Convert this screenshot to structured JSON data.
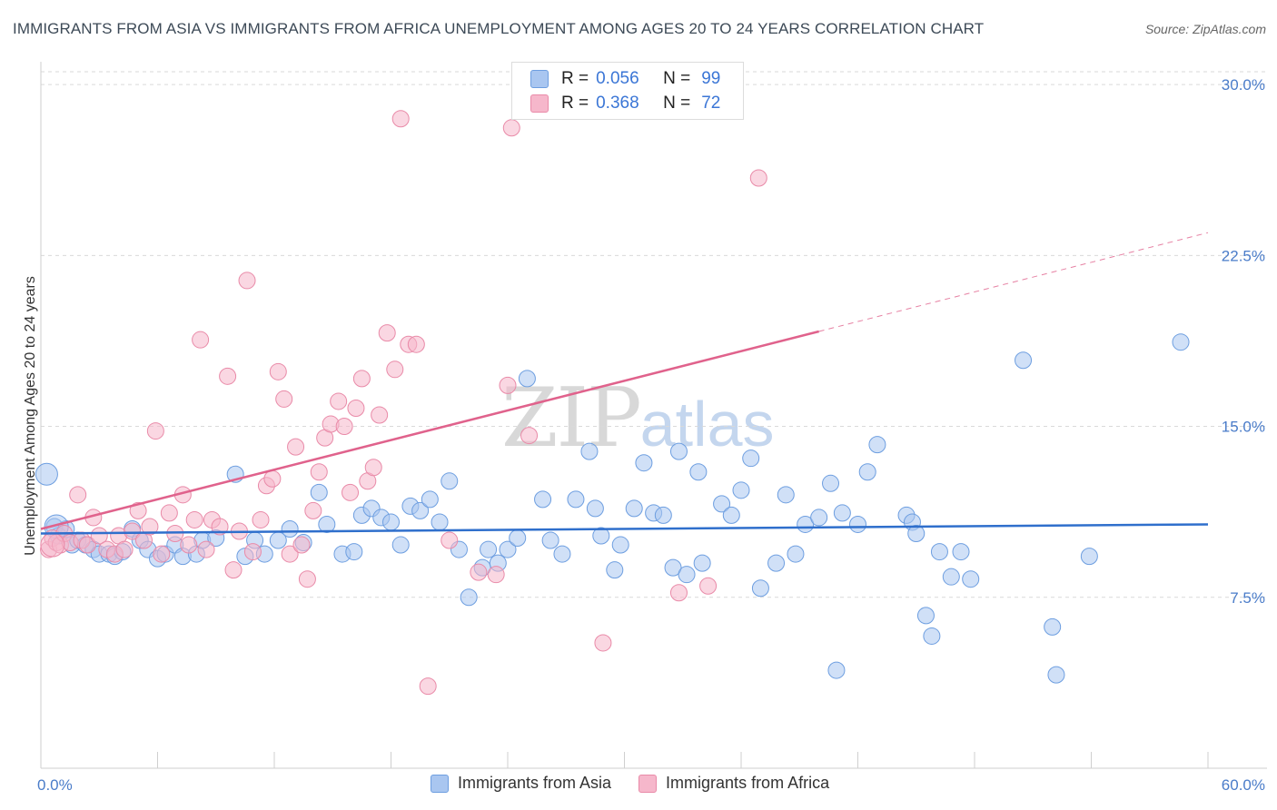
{
  "header": {
    "title": "IMMIGRANTS FROM ASIA VS IMMIGRANTS FROM AFRICA UNEMPLOYMENT AMONG AGES 20 TO 24 YEARS CORRELATION CHART",
    "source": "Source: ZipAtlas.com"
  },
  "watermark": {
    "zip": "ZIP",
    "atlas": "atlas"
  },
  "legend": {
    "asia": {
      "r_label": "R =",
      "r_value": "0.056",
      "n_label": "N =",
      "n_value": "99"
    },
    "africa": {
      "r_label": "R =",
      "r_value": "0.368",
      "n_label": "N =",
      "n_value": "72"
    }
  },
  "colors": {
    "asia_fill": "#a9c6f0",
    "asia_stroke": "#6d9ee0",
    "asia_line": "#2f6fcc",
    "africa_fill": "#f6b7cb",
    "africa_stroke": "#e98aa8",
    "africa_line": "#e0628c",
    "grid": "#d9d9d9",
    "axis_text": "#4a7cc9"
  },
  "chart_data": {
    "type": "scatter",
    "title": "IMMIGRANTS FROM ASIA VS IMMIGRANTS FROM AFRICA UNEMPLOYMENT AMONG AGES 20 TO 24 YEARS CORRELATION CHART",
    "xlabel": "",
    "ylabel": "Unemployment Among Ages 20 to 24 years",
    "xlim": [
      0,
      60
    ],
    "ylim": [
      0,
      31
    ],
    "x_tick_labels": [
      "0.0%",
      "60.0%"
    ],
    "y_ticks": [
      7.5,
      15.0,
      22.5,
      30.0
    ],
    "y_tick_labels": [
      "7.5%",
      "15.0%",
      "22.5%",
      "30.0%"
    ],
    "grid": "horizontal dashed",
    "legend_position": "top-center",
    "series": [
      {
        "name": "Immigrants from Asia",
        "r": 0.056,
        "n": 99,
        "trend": {
          "x": [
            0,
            60
          ],
          "y": [
            10.3,
            10.7
          ],
          "dashed_from": null
        },
        "points": [
          [
            0.3,
            12.9
          ],
          [
            0.7,
            10.6
          ],
          [
            0.9,
            10.2
          ],
          [
            1.3,
            10.5
          ],
          [
            1.6,
            9.8
          ],
          [
            1.9,
            10.0
          ],
          [
            2.3,
            9.8
          ],
          [
            2.7,
            9.6
          ],
          [
            3.0,
            9.4
          ],
          [
            3.5,
            9.4
          ],
          [
            3.8,
            9.3
          ],
          [
            4.2,
            9.5
          ],
          [
            4.7,
            10.5
          ],
          [
            5.1,
            10.0
          ],
          [
            5.5,
            9.6
          ],
          [
            6.0,
            9.2
          ],
          [
            6.4,
            9.4
          ],
          [
            6.9,
            9.8
          ],
          [
            7.3,
            9.3
          ],
          [
            8.0,
            9.4
          ],
          [
            8.3,
            10.0
          ],
          [
            9.0,
            10.1
          ],
          [
            10.0,
            12.9
          ],
          [
            10.5,
            9.3
          ],
          [
            11.0,
            10.0
          ],
          [
            11.5,
            9.4
          ],
          [
            12.2,
            10.0
          ],
          [
            12.8,
            10.5
          ],
          [
            13.5,
            9.9
          ],
          [
            14.3,
            12.1
          ],
          [
            14.7,
            10.7
          ],
          [
            15.5,
            9.4
          ],
          [
            16.1,
            9.5
          ],
          [
            16.5,
            11.1
          ],
          [
            17.0,
            11.4
          ],
          [
            17.5,
            11.0
          ],
          [
            18.0,
            10.8
          ],
          [
            18.5,
            9.8
          ],
          [
            19.0,
            11.5
          ],
          [
            19.5,
            11.3
          ],
          [
            20.0,
            11.8
          ],
          [
            20.5,
            10.8
          ],
          [
            21.0,
            12.6
          ],
          [
            21.5,
            9.6
          ],
          [
            22.0,
            7.5
          ],
          [
            22.7,
            8.8
          ],
          [
            23.0,
            9.6
          ],
          [
            23.5,
            9.0
          ],
          [
            24.0,
            9.6
          ],
          [
            24.5,
            10.1
          ],
          [
            25.0,
            17.1
          ],
          [
            25.8,
            11.8
          ],
          [
            26.2,
            10.0
          ],
          [
            26.8,
            9.4
          ],
          [
            27.5,
            11.8
          ],
          [
            28.2,
            13.9
          ],
          [
            28.5,
            11.4
          ],
          [
            28.8,
            10.2
          ],
          [
            29.5,
            8.7
          ],
          [
            29.8,
            9.8
          ],
          [
            30.5,
            11.4
          ],
          [
            31.0,
            13.4
          ],
          [
            31.5,
            11.2
          ],
          [
            32.0,
            11.1
          ],
          [
            32.5,
            8.8
          ],
          [
            32.8,
            13.9
          ],
          [
            33.2,
            8.5
          ],
          [
            33.8,
            13.0
          ],
          [
            34.0,
            9.0
          ],
          [
            35.0,
            11.6
          ],
          [
            35.5,
            11.1
          ],
          [
            36.0,
            12.2
          ],
          [
            36.5,
            13.6
          ],
          [
            37.0,
            7.9
          ],
          [
            37.8,
            9.0
          ],
          [
            38.3,
            12.0
          ],
          [
            38.8,
            9.4
          ],
          [
            39.3,
            10.7
          ],
          [
            40.0,
            11.0
          ],
          [
            40.6,
            12.5
          ],
          [
            40.9,
            4.3
          ],
          [
            41.2,
            11.2
          ],
          [
            42.0,
            10.7
          ],
          [
            42.5,
            13.0
          ],
          [
            43.0,
            14.2
          ],
          [
            44.5,
            11.1
          ],
          [
            44.8,
            10.8
          ],
          [
            45.0,
            10.3
          ],
          [
            45.5,
            6.7
          ],
          [
            45.8,
            5.8
          ],
          [
            46.2,
            9.5
          ],
          [
            46.8,
            8.4
          ],
          [
            47.3,
            9.5
          ],
          [
            47.8,
            8.3
          ],
          [
            50.5,
            17.9
          ],
          [
            52.0,
            6.2
          ],
          [
            52.2,
            4.1
          ],
          [
            53.9,
            9.3
          ],
          [
            58.6,
            18.7
          ]
        ]
      },
      {
        "name": "Immigrants from Africa",
        "r": 0.368,
        "n": 72,
        "trend": {
          "x": [
            0,
            60
          ],
          "y": [
            10.5,
            23.5
          ],
          "dashed_from": 40
        },
        "points": [
          [
            0.4,
            9.6
          ],
          [
            0.6,
            10.1
          ],
          [
            0.8,
            9.9
          ],
          [
            1.0,
            9.8
          ],
          [
            1.2,
            10.3
          ],
          [
            1.5,
            9.9
          ],
          [
            1.9,
            12.0
          ],
          [
            2.1,
            10.0
          ],
          [
            2.4,
            9.8
          ],
          [
            2.7,
            11.0
          ],
          [
            3.0,
            10.2
          ],
          [
            3.4,
            9.6
          ],
          [
            3.8,
            9.4
          ],
          [
            4.0,
            10.2
          ],
          [
            4.3,
            9.6
          ],
          [
            4.7,
            10.4
          ],
          [
            5.0,
            11.3
          ],
          [
            5.3,
            10.0
          ],
          [
            5.6,
            10.6
          ],
          [
            5.9,
            14.8
          ],
          [
            6.2,
            9.4
          ],
          [
            6.6,
            11.2
          ],
          [
            6.9,
            10.3
          ],
          [
            7.3,
            12.0
          ],
          [
            7.6,
            9.8
          ],
          [
            7.9,
            10.9
          ],
          [
            8.2,
            18.8
          ],
          [
            8.5,
            9.6
          ],
          [
            8.8,
            10.9
          ],
          [
            9.2,
            10.6
          ],
          [
            9.6,
            17.2
          ],
          [
            9.9,
            8.7
          ],
          [
            10.2,
            10.4
          ],
          [
            10.6,
            21.4
          ],
          [
            10.9,
            9.5
          ],
          [
            11.3,
            10.9
          ],
          [
            11.6,
            12.4
          ],
          [
            11.9,
            12.7
          ],
          [
            12.2,
            17.4
          ],
          [
            12.5,
            16.2
          ],
          [
            12.8,
            9.4
          ],
          [
            13.1,
            14.1
          ],
          [
            13.4,
            9.8
          ],
          [
            13.7,
            8.3
          ],
          [
            14.0,
            11.3
          ],
          [
            14.3,
            13.0
          ],
          [
            14.6,
            14.5
          ],
          [
            14.9,
            15.1
          ],
          [
            15.3,
            16.1
          ],
          [
            15.6,
            15.0
          ],
          [
            15.9,
            12.1
          ],
          [
            16.2,
            15.8
          ],
          [
            16.5,
            17.1
          ],
          [
            16.8,
            12.6
          ],
          [
            17.1,
            13.2
          ],
          [
            17.4,
            15.5
          ],
          [
            17.8,
            19.1
          ],
          [
            18.2,
            17.5
          ],
          [
            18.5,
            28.5
          ],
          [
            18.9,
            18.6
          ],
          [
            19.3,
            18.6
          ],
          [
            19.9,
            3.6
          ],
          [
            21.0,
            10.0
          ],
          [
            22.5,
            8.6
          ],
          [
            23.4,
            8.5
          ],
          [
            24.0,
            16.8
          ],
          [
            24.2,
            28.1
          ],
          [
            25.1,
            14.6
          ],
          [
            28.9,
            5.5
          ],
          [
            32.8,
            7.7
          ],
          [
            34.3,
            8.0
          ],
          [
            36.9,
            25.9
          ]
        ]
      }
    ]
  }
}
